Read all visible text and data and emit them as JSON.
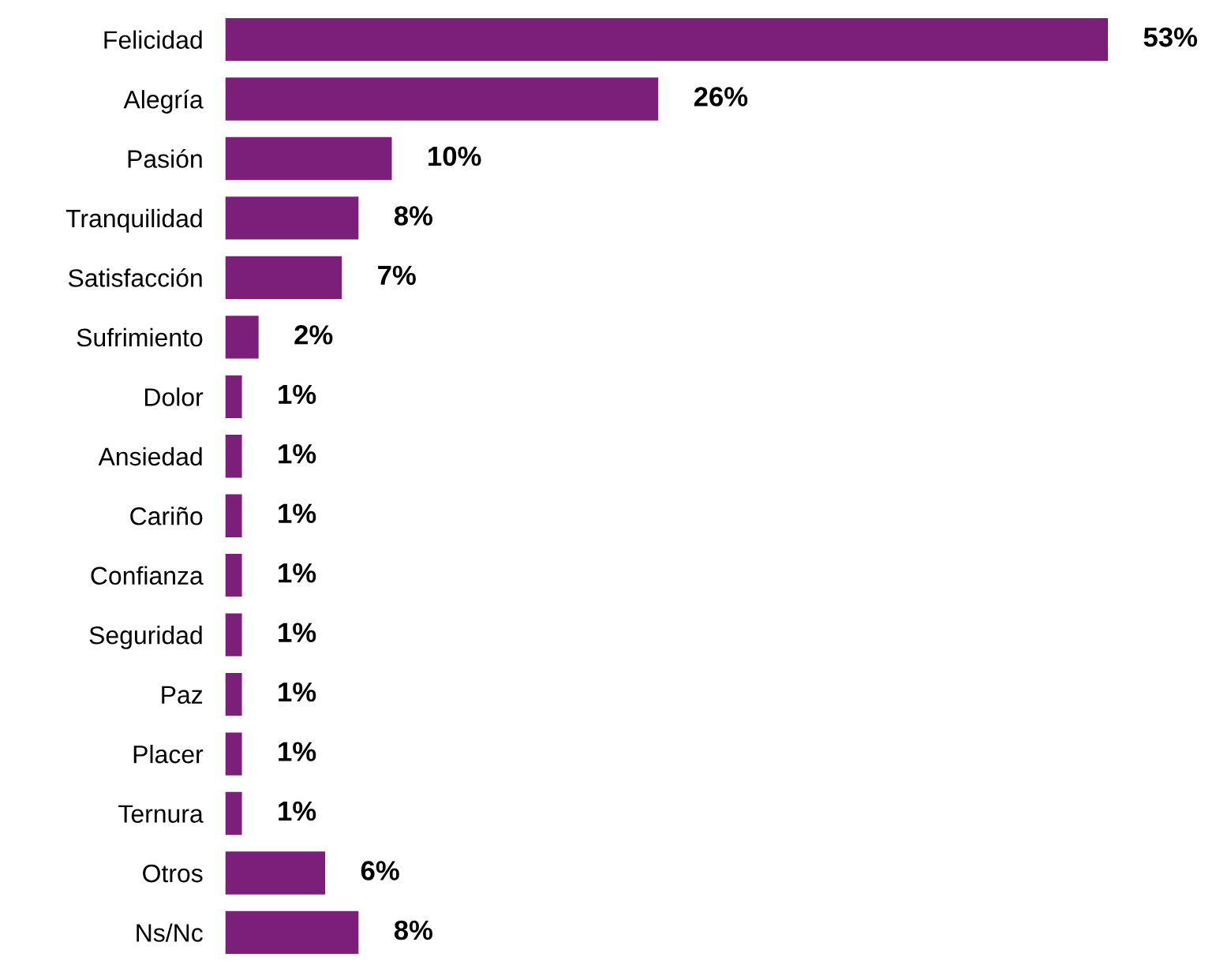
{
  "chart_data": {
    "type": "bar",
    "orientation": "horizontal",
    "categories": [
      "Felicidad",
      "Alegría",
      "Pasión",
      "Tranquilidad",
      "Satisfacción",
      "Sufrimiento",
      "Dolor",
      "Ansiedad",
      "Cariño",
      "Confianza",
      "Seguridad",
      "Paz",
      "Placer",
      "Ternura",
      "Otros",
      "Ns/Nc"
    ],
    "values": [
      53,
      26,
      10,
      8,
      7,
      2,
      1,
      1,
      1,
      1,
      1,
      1,
      1,
      1,
      6,
      8
    ],
    "value_labels": [
      "53%",
      "26%",
      "10%",
      "8%",
      "7%",
      "2%",
      "1%",
      "1%",
      "1%",
      "1%",
      "1%",
      "1%",
      "1%",
      "1%",
      "6%",
      "8%"
    ],
    "color": "#7b1f7a",
    "grid": false,
    "legend": false
  }
}
